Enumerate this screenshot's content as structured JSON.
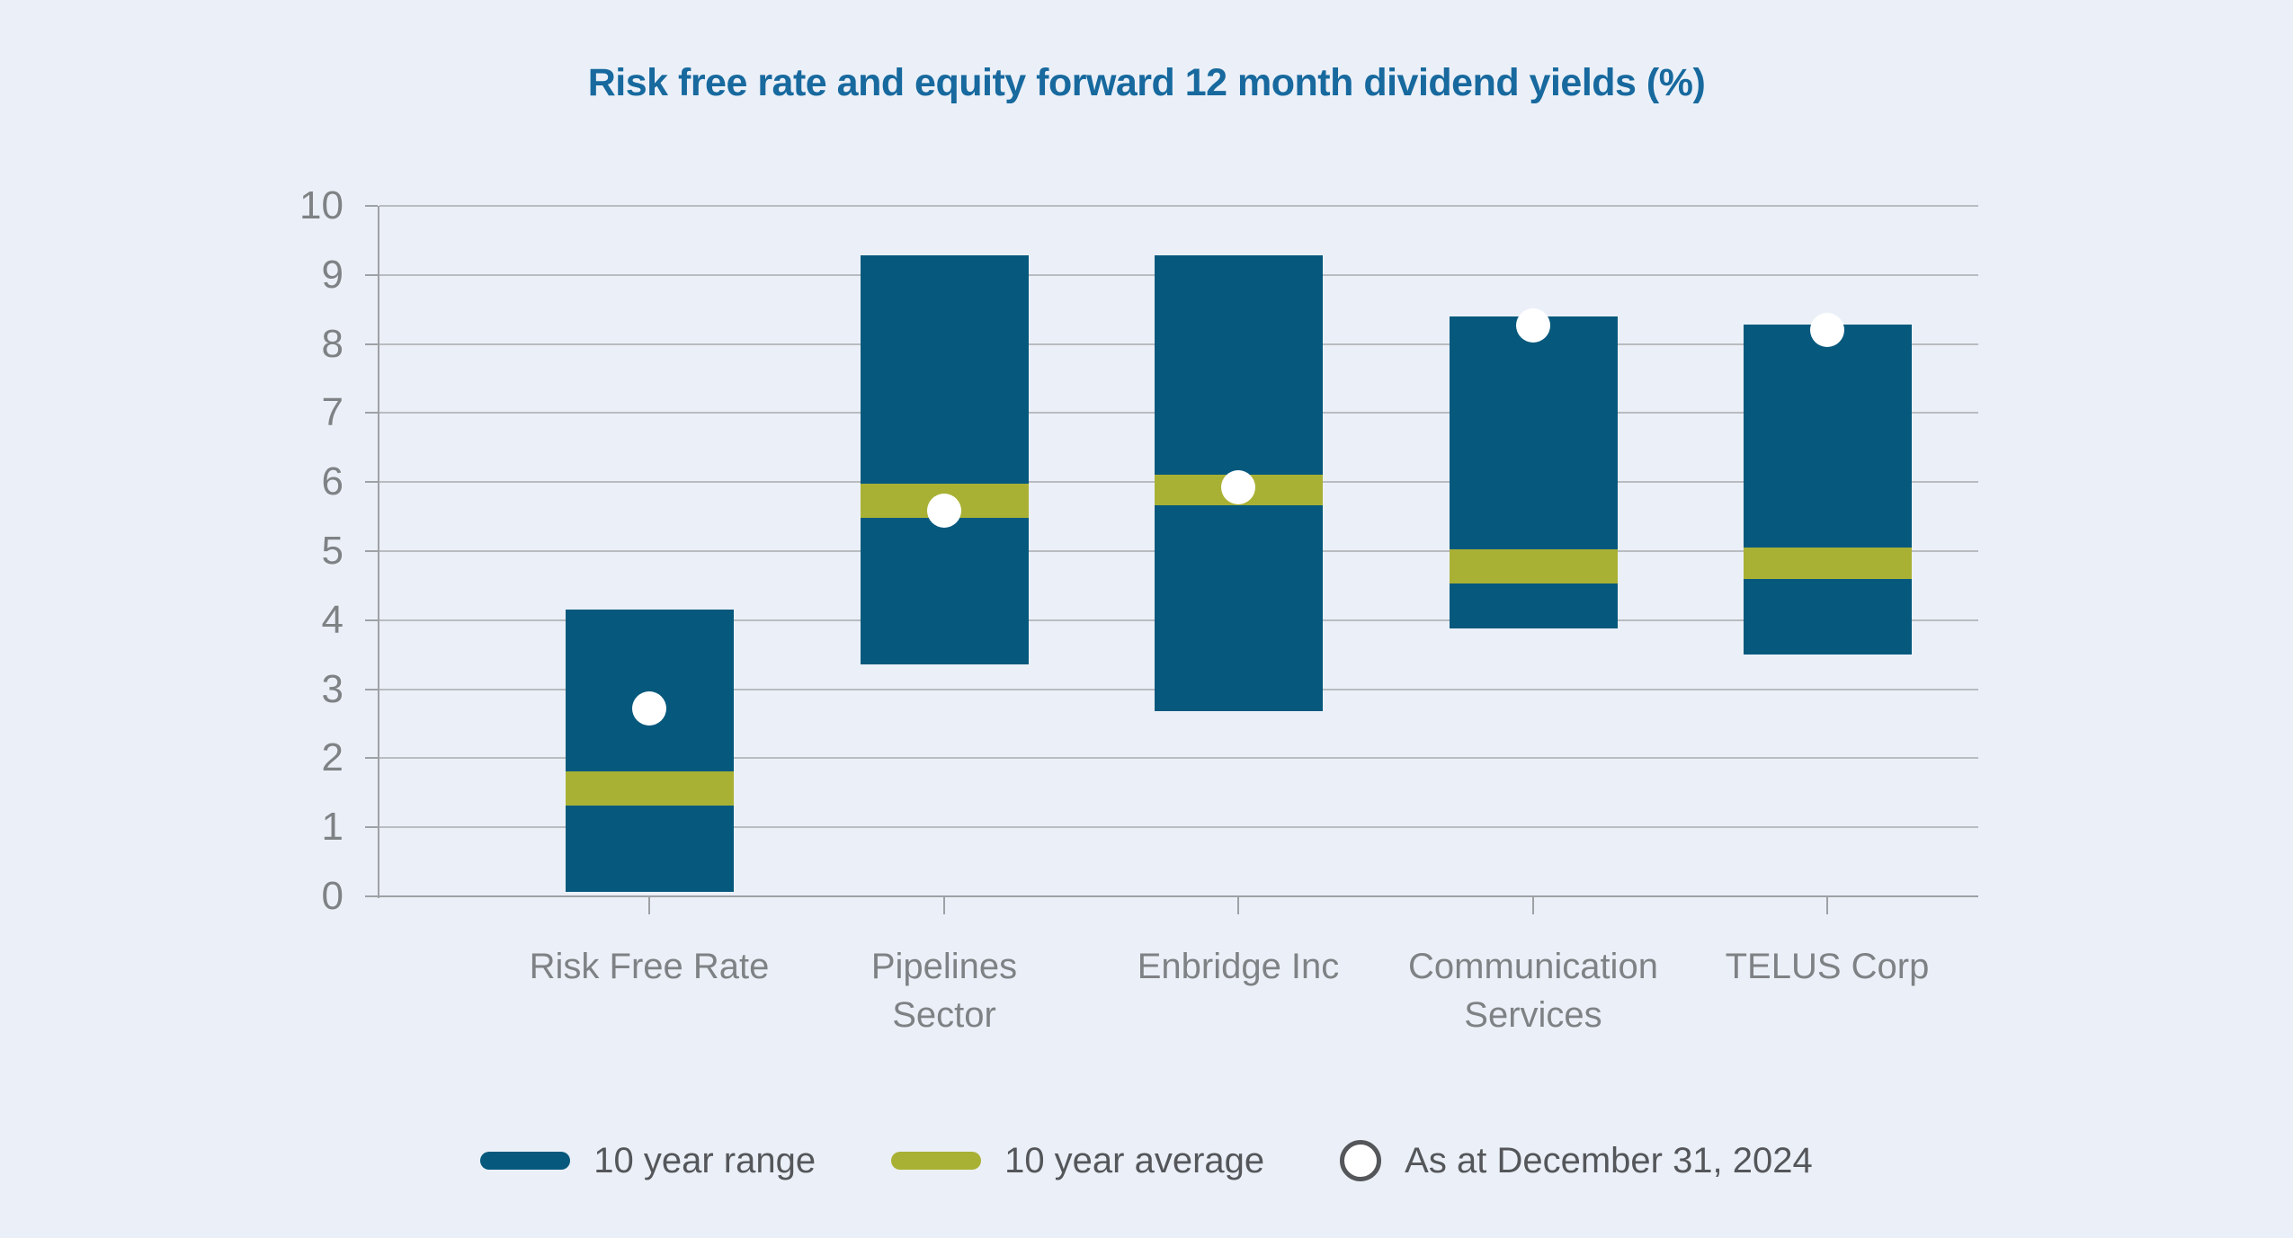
{
  "title": "Risk free rate and equity forward 12 month dividend yields (%)",
  "chart_data": {
    "type": "bar",
    "subtype": "floating-range-columns-with-average-band-and-point-markers",
    "title": "Risk free rate and equity forward 12 month dividend yields (%)",
    "categories": [
      "Risk Free Rate",
      "Pipelines Sector",
      "Enbridge Inc",
      "Communication Services",
      "TELUS Corp"
    ],
    "category_labels_wrapped": [
      "Risk Free Rate",
      "Pipelines\nSector",
      "Enbridge Inc",
      "Communication\nServices",
      "TELUS Corp"
    ],
    "ylim": [
      0,
      10
    ],
    "yticks": [
      0,
      1,
      2,
      3,
      4,
      5,
      6,
      7,
      8,
      9,
      10
    ],
    "grid": "horizontal",
    "legend_position": "bottom",
    "series": [
      {
        "name": "10 year range",
        "type": "column-range",
        "color": "#06597d",
        "low": [
          0.07,
          3.36,
          2.68,
          3.88,
          3.5
        ],
        "high": [
          4.15,
          9.28,
          9.29,
          8.4,
          8.28
        ]
      },
      {
        "name": "10 year average",
        "type": "band",
        "color": "#a9b135",
        "low": [
          1.32,
          5.48,
          5.66,
          4.53,
          4.6
        ],
        "high": [
          1.81,
          5.98,
          6.11,
          5.02,
          5.05
        ],
        "center": [
          1.56,
          5.73,
          5.89,
          4.78,
          4.83
        ]
      },
      {
        "name": "As at December 31, 2024",
        "type": "point",
        "color": "#ffffff",
        "values": [
          2.72,
          5.58,
          5.93,
          8.27,
          8.2
        ]
      }
    ]
  },
  "legend": {
    "items": [
      {
        "label": "10 year range",
        "swatch": "line",
        "color": "#06597d"
      },
      {
        "label": "10 year average",
        "swatch": "line",
        "color": "#a9b135"
      },
      {
        "label": "As at December 31, 2024",
        "swatch": "circle",
        "color": "#ffffff"
      }
    ]
  },
  "colors": {
    "background": "#ebf0f8",
    "title": "#17699e",
    "range_bar": "#06597d",
    "average_band": "#a9b135",
    "dot": "#ffffff",
    "gridline": "#b9bcc0",
    "axis": "#9ea1a5",
    "axis_labels": "#7f8285",
    "legend_text": "#54565a"
  }
}
